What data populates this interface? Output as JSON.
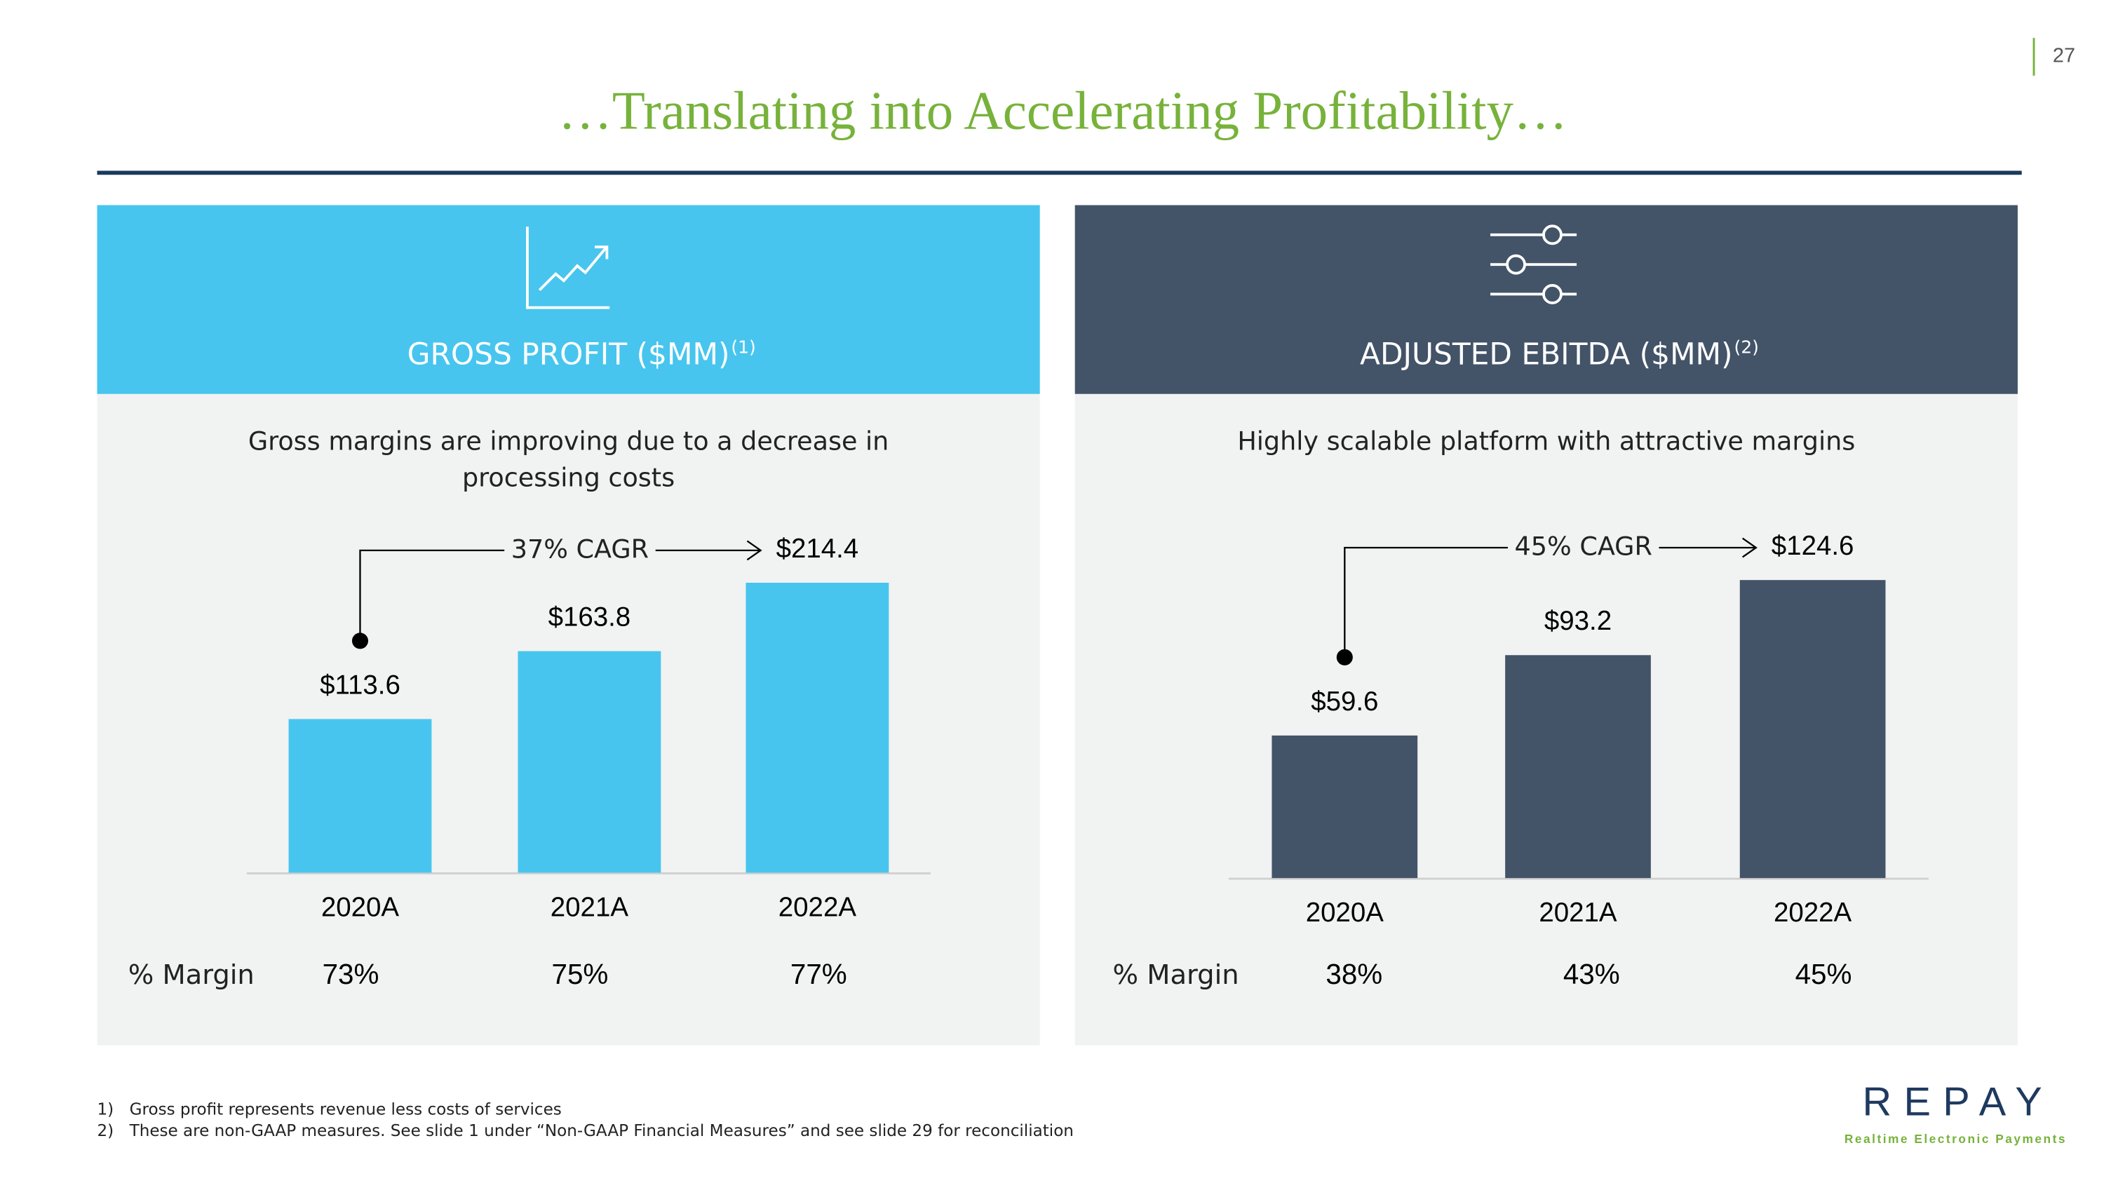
{
  "slide": {
    "title": "…Translating into Accelerating Profitability…",
    "page_number": "27",
    "footnotes": [
      {
        "marker": "1)",
        "text": "Gross profit represents revenue less costs of services"
      },
      {
        "marker": "2)",
        "text": "These are non-GAAP measures. See slide 1 under “Non-GAAP Financial Measures” and see slide 29 for reconciliation"
      }
    ],
    "logo": {
      "name": "REPAY",
      "tagline": "Realtime Electronic Payments"
    }
  },
  "chart_data": [
    {
      "type": "bar",
      "title": "GROSS PROFIT ($MM)",
      "title_note": "(1)",
      "subtitle": [
        "Gross margins are improving due to a decrease in",
        "processing costs"
      ],
      "categories": [
        "2020A",
        "2021A",
        "2022A"
      ],
      "values": [
        113.6,
        163.8,
        214.4
      ],
      "value_labels": [
        "$113.6",
        "$163.8",
        "$214.4"
      ],
      "color": "#47c5ee",
      "header_color": "#47c5ee",
      "annotation": "37% CAGR",
      "margin_label": "% Margin",
      "margins": [
        "73%",
        "75%",
        "77%"
      ]
    },
    {
      "type": "bar",
      "title": "ADJUSTED EBITDA ($MM)",
      "title_note": "(2)",
      "subtitle": [
        "Highly scalable platform with attractive margins"
      ],
      "categories": [
        "2020A",
        "2021A",
        "2022A"
      ],
      "values": [
        59.6,
        93.2,
        124.6
      ],
      "value_labels": [
        "$59.6",
        "$93.2",
        "$124.6"
      ],
      "color": "#435368",
      "header_color": "#435368",
      "annotation": "45% CAGR",
      "margin_label": "% Margin",
      "margins": [
        "38%",
        "43%",
        "45%"
      ]
    }
  ]
}
